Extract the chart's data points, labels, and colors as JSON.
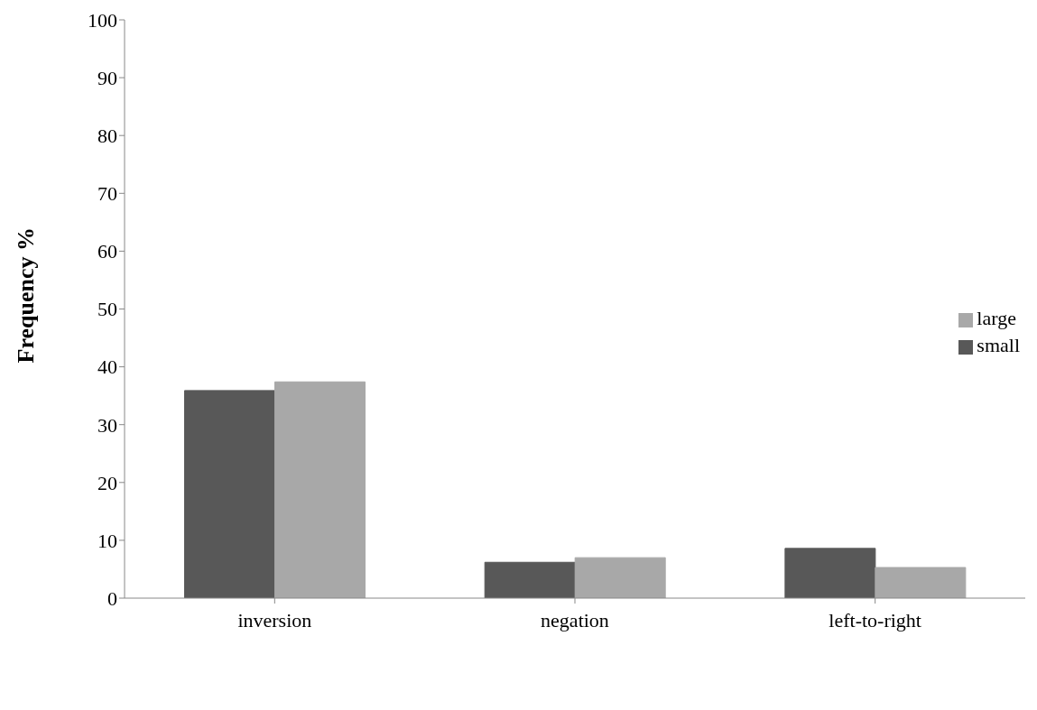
{
  "chart_data": {
    "type": "bar",
    "ylabel": "Frequency  %",
    "categories": [
      "inversion",
      "negation",
      "left-to-right"
    ],
    "series": [
      {
        "name": "small",
        "color": "#585858",
        "values": [
          35.9,
          6.2,
          8.6
        ]
      },
      {
        "name": "large",
        "color": "#a8a8a8",
        "values": [
          37.4,
          7.0,
          5.3
        ]
      }
    ],
    "ylim": [
      0,
      100
    ],
    "yticks": [
      0,
      10,
      20,
      30,
      40,
      50,
      60,
      70,
      80,
      90,
      100
    ],
    "grid": false,
    "legend": "right"
  }
}
